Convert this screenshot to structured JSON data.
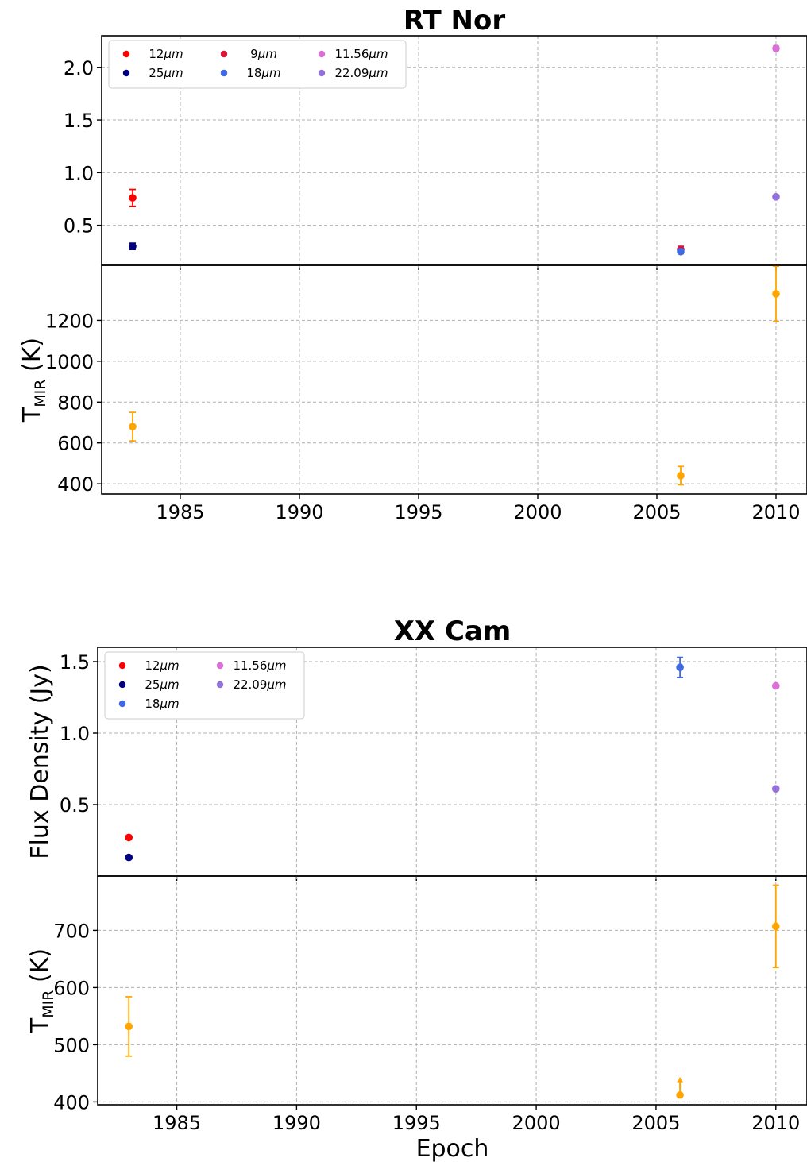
{
  "chart_data": [
    {
      "type": "scatter",
      "title": "RT Nor",
      "panels": [
        {
          "role": "flux",
          "ylabel": "",
          "ylim": [
            0.12,
            2.3
          ],
          "yticks": [
            0.5,
            1.0,
            1.5,
            2.0
          ],
          "ytick_labels": [
            "0.5",
            "1.0",
            "1.5",
            "2.0"
          ],
          "legend": {
            "position": "upper-left",
            "columns": 3,
            "entries": [
              {
                "label_num": "12",
                "label_unit": "μm",
                "color": "#ff0000"
              },
              {
                "label_num": "25",
                "label_unit": "μm",
                "color": "#000080"
              },
              {
                "label_num": "9",
                "label_unit": "μm",
                "color": "#dc143c"
              },
              {
                "label_num": "18",
                "label_unit": "μm",
                "color": "#4169e1"
              },
              {
                "label_num": "11.56",
                "label_unit": "μm",
                "color": "#da70d6"
              },
              {
                "label_num": "22.09",
                "label_unit": "μm",
                "color": "#9370db"
              }
            ]
          },
          "series": [
            {
              "name": "12μm",
              "color": "#ff0000",
              "points": [
                {
                  "x": 1983.0,
                  "y": 0.76,
                  "err": 0.08
                }
              ]
            },
            {
              "name": "25μm",
              "color": "#000080",
              "points": [
                {
                  "x": 1983.0,
                  "y": 0.3,
                  "err": 0.03
                }
              ]
            },
            {
              "name": "9μm",
              "color": "#dc143c",
              "points": [
                {
                  "x": 2006.0,
                  "y": 0.27,
                  "err": 0.03
                }
              ]
            },
            {
              "name": "18μm",
              "color": "#4169e1",
              "points": [
                {
                  "x": 2006.0,
                  "y": 0.25,
                  "err": 0.02
                }
              ]
            },
            {
              "name": "11.56μm",
              "color": "#da70d6",
              "points": [
                {
                  "x": 2010.0,
                  "y": 2.18,
                  "err": 0.02
                }
              ]
            },
            {
              "name": "22.09μm",
              "color": "#9370db",
              "points": [
                {
                  "x": 2010.0,
                  "y": 0.77,
                  "err": 0.01
                }
              ]
            }
          ]
        },
        {
          "role": "temp",
          "ylabel_main": "T",
          "ylabel_sub": "MIR",
          "ylabel_tail": " (K)",
          "ylim": [
            350,
            1470
          ],
          "yticks": [
            400,
            600,
            800,
            1000,
            1200
          ],
          "ytick_labels": [
            "400",
            "600",
            "800",
            "1000",
            "1200"
          ],
          "series": [
            {
              "color": "#ffa500",
              "points": [
                {
                  "x": 1983.0,
                  "y": 680,
                  "err_lo": 70,
                  "err_hi": 70
                },
                {
                  "x": 2006.0,
                  "y": 440,
                  "err_lo": 45,
                  "err_hi": 45
                },
                {
                  "x": 2010.0,
                  "y": 1330,
                  "err_lo": 135,
                  "err_hi": 135
                }
              ]
            }
          ]
        }
      ],
      "xlim": [
        1981.7,
        2011.3
      ],
      "xticks": [
        1985,
        1990,
        1995,
        2000,
        2005,
        2010
      ],
      "xtick_labels": [
        "1985",
        "1990",
        "1995",
        "2000",
        "2005",
        "2010"
      ],
      "xlabel": "",
      "grid": true
    },
    {
      "type": "scatter",
      "title": "XX Cam",
      "panels": [
        {
          "role": "flux",
          "ylabel": "Flux Density (Jy)",
          "ylim": [
            0.0,
            1.6
          ],
          "yticks": [
            0.5,
            1.0,
            1.5
          ],
          "ytick_labels": [
            "0.5",
            "1.0",
            "1.5"
          ],
          "legend": {
            "position": "upper-left",
            "columns": 2,
            "entries": [
              {
                "label_num": "12",
                "label_unit": "μm",
                "color": "#ff0000"
              },
              {
                "label_num": "25",
                "label_unit": "μm",
                "color": "#000080"
              },
              {
                "label_num": "18",
                "label_unit": "μm",
                "color": "#4169e1"
              },
              {
                "label_num": "11.56",
                "label_unit": "μm",
                "color": "#da70d6"
              },
              {
                "label_num": "22.09",
                "label_unit": "μm",
                "color": "#9370db"
              }
            ]
          },
          "series": [
            {
              "name": "12μm",
              "color": "#ff0000",
              "points": [
                {
                  "x": 1983.0,
                  "y": 0.27,
                  "err": 0.01
                }
              ]
            },
            {
              "name": "25μm",
              "color": "#000080",
              "points": [
                {
                  "x": 1983.0,
                  "y": 0.13,
                  "err": 0.01
                }
              ]
            },
            {
              "name": "18μm",
              "color": "#4169e1",
              "points": [
                {
                  "x": 2006.0,
                  "y": 1.46,
                  "err": 0.07
                }
              ]
            },
            {
              "name": "11.56μm",
              "color": "#da70d6",
              "points": [
                {
                  "x": 2010.0,
                  "y": 1.33,
                  "err": 0.01
                }
              ]
            },
            {
              "name": "22.09μm",
              "color": "#9370db",
              "points": [
                {
                  "x": 2010.0,
                  "y": 0.61,
                  "err": 0.01
                }
              ]
            }
          ]
        },
        {
          "role": "temp",
          "ylabel_main": "T",
          "ylabel_sub": "MIR",
          "ylabel_tail": " (K)",
          "ylim": [
            395,
            795
          ],
          "yticks": [
            400,
            500,
            600,
            700
          ],
          "ytick_labels": [
            "400",
            "500",
            "600",
            "700"
          ],
          "series": [
            {
              "color": "#ffa500",
              "points": [
                {
                  "x": 1983.0,
                  "y": 532,
                  "err_lo": 52,
                  "err_hi": 52
                },
                {
                  "x": 2006.0,
                  "y": 412,
                  "lower_limit": true
                },
                {
                  "x": 2010.0,
                  "y": 707,
                  "err_lo": 72,
                  "err_hi": 72
                }
              ]
            }
          ]
        }
      ],
      "xlim": [
        1981.7,
        2011.3
      ],
      "xticks": [
        1985,
        1990,
        1995,
        2000,
        2005,
        2010
      ],
      "xtick_labels": [
        "1985",
        "1990",
        "1995",
        "2000",
        "2005",
        "2010"
      ],
      "xlabel": "Epoch",
      "grid": true
    }
  ]
}
